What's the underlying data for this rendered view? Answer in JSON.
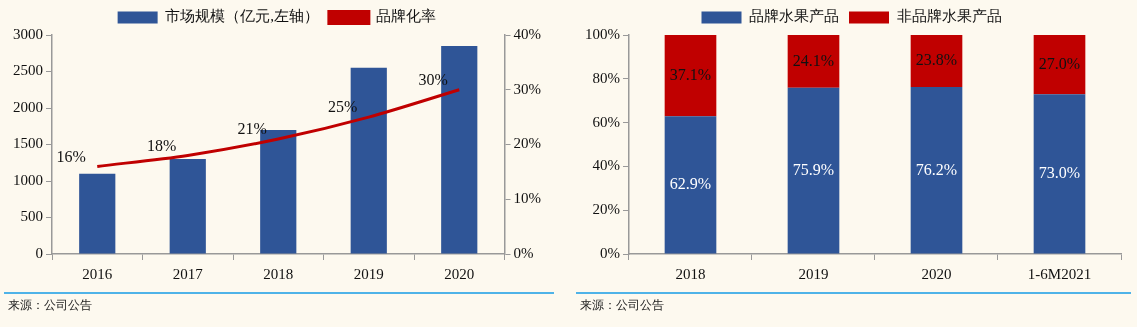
{
  "chart_data": [
    {
      "type": "bar",
      "categories": [
        "2016",
        "2017",
        "2018",
        "2019",
        "2020"
      ],
      "series": [
        {
          "name": "市场规模（亿元,左轴）",
          "color": "#2f5597",
          "values": [
            1100,
            1300,
            1700,
            2550,
            2850
          ]
        },
        {
          "name": "品牌化率",
          "type": "line",
          "axis": "y2",
          "color": "#c00000",
          "values": [
            16,
            18,
            21,
            25,
            30
          ],
          "value_labels": [
            "16%",
            "18%",
            "21%",
            "25%",
            "30%"
          ]
        }
      ],
      "ylim": [
        0,
        3000
      ],
      "yticks": [
        0,
        500,
        1000,
        1500,
        2000,
        2500,
        3000
      ],
      "y2lim": [
        0,
        40
      ],
      "y2ticks": [
        {
          "value": 0,
          "label": "0%"
        },
        {
          "value": 10,
          "label": "10%"
        },
        {
          "value": 20,
          "label": "20%"
        },
        {
          "value": 30,
          "label": "30%"
        },
        {
          "value": 40,
          "label": "40%"
        }
      ],
      "grid": false,
      "legend": "top",
      "marker": "none",
      "annotations": [
        "来源：公司公告"
      ]
    },
    {
      "type": "bar",
      "stacked": true,
      "categories": [
        "2018",
        "2019",
        "2020",
        "1-6M2021"
      ],
      "series": [
        {
          "name": "品牌水果产品",
          "color": "#2f5597",
          "values": [
            62.9,
            75.9,
            76.2,
            73.0
          ],
          "value_labels": [
            "62.9%",
            "75.9%",
            "76.2%",
            "73.0%"
          ]
        },
        {
          "name": "非品牌水果产品",
          "color": "#c00000",
          "values": [
            37.1,
            24.1,
            23.8,
            27.0
          ],
          "value_labels": [
            "37.1%",
            "24.1%",
            "23.8%",
            "27.0%"
          ]
        }
      ],
      "ylim": [
        0,
        100
      ],
      "yticks": [
        {
          "value": 0,
          "label": "0%"
        },
        {
          "value": 20,
          "label": "20%"
        },
        {
          "value": 40,
          "label": "40%"
        },
        {
          "value": 60,
          "label": "60%"
        },
        {
          "value": 80,
          "label": "80%"
        },
        {
          "value": 100,
          "label": "100%"
        }
      ],
      "grid": false,
      "legend": "top",
      "annotations": [
        "来源：公司公告"
      ]
    }
  ]
}
